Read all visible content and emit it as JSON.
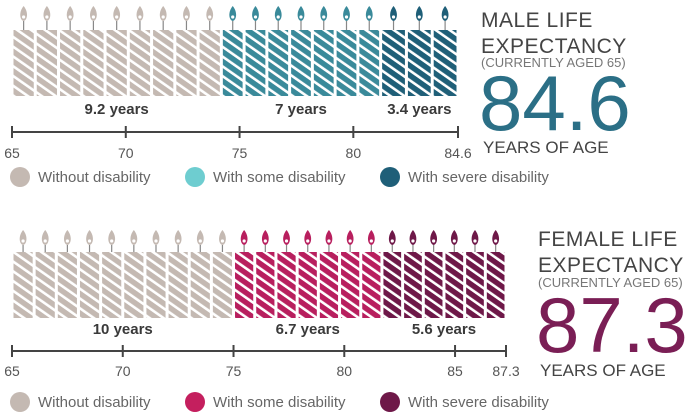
{
  "chart_data": [
    {
      "type": "bar",
      "orientation": "horizontal-stacked",
      "title_lines": [
        "MALE LIFE",
        "EXPECTANCY"
      ],
      "subtitle": "(CURRENTLY AGED 65)",
      "total_value": "84.6",
      "total_unit": "YEARS OF AGE",
      "axis": {
        "min": 65,
        "max": 84.6,
        "ticks": [
          "65",
          "70",
          "75",
          "80",
          "84.6"
        ]
      },
      "segments": [
        {
          "name": "Without disability",
          "value": 9.2,
          "label": "9.2 years",
          "color": "#c4b9b2"
        },
        {
          "name": "With some disability",
          "value": 7,
          "label": "7 years",
          "color": "#3a8a9a"
        },
        {
          "name": "With severe disability",
          "value": 3.4,
          "label": "3.4 years",
          "color": "#1f5f78"
        }
      ],
      "legend": [
        {
          "label": "Without disability",
          "color": "#c4b9b2"
        },
        {
          "label": "With some disability",
          "color": "#6ecdd0"
        },
        {
          "label": "With severe disability",
          "color": "#1f5f78"
        }
      ],
      "accent_color": "#2b6f86"
    },
    {
      "type": "bar",
      "orientation": "horizontal-stacked",
      "title_lines": [
        "FEMALE LIFE",
        "EXPECTANCY"
      ],
      "subtitle": "(CURRENTLY AGED 65)",
      "total_value": "87.3",
      "total_unit": "YEARS OF AGE",
      "axis": {
        "min": 65,
        "max": 87.3,
        "ticks": [
          "65",
          "70",
          "75",
          "80",
          "85",
          "87.3"
        ]
      },
      "segments": [
        {
          "name": "Without disability",
          "value": 10,
          "label": "10 years",
          "color": "#c4b9b2"
        },
        {
          "name": "With some disability",
          "value": 6.7,
          "label": "6.7 years",
          "color": "#b81f5e"
        },
        {
          "name": "With severe disability",
          "value": 5.6,
          "label": "5.6 years",
          "color": "#6e1848"
        }
      ],
      "legend": [
        {
          "label": "Without disability",
          "color": "#c4b9b2"
        },
        {
          "label": "With some disability",
          "color": "#c41f5e"
        },
        {
          "label": "With severe disability",
          "color": "#6e1848"
        }
      ],
      "accent_color": "#7a1e55"
    }
  ]
}
